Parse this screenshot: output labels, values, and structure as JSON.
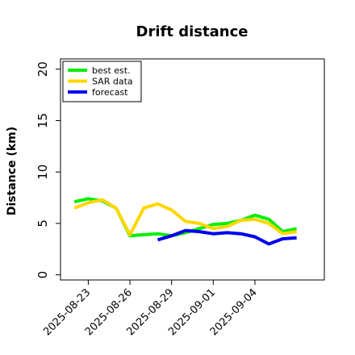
{
  "chart_data": {
    "type": "line",
    "title": "Drift distance",
    "xlabel": "",
    "ylabel": "Distance (km)",
    "ylim": [
      -0.5,
      21
    ],
    "yticks": [
      0,
      5,
      10,
      15,
      20
    ],
    "xticks": [
      "2025-08-23",
      "2025-08-26",
      "2025-08-29",
      "2025-09-01",
      "2025-09-04"
    ],
    "xlim": [
      "2025-08-21",
      "2025-09-09"
    ],
    "grid": false,
    "legend": "top-left",
    "series": [
      {
        "name": "best est.",
        "color": "#00ee00",
        "x": [
          "2025-08-22",
          "2025-08-23",
          "2025-08-24",
          "2025-08-25",
          "2025-08-26",
          "2025-08-27",
          "2025-08-28",
          "2025-08-29",
          "2025-08-30",
          "2025-08-31",
          "2025-09-01",
          "2025-09-02",
          "2025-09-03",
          "2025-09-04",
          "2025-09-05",
          "2025-09-06",
          "2025-09-07"
        ],
        "values": [
          7.1,
          7.4,
          7.2,
          6.5,
          3.8,
          3.9,
          4.0,
          3.8,
          4.1,
          4.5,
          4.9,
          5.0,
          5.3,
          5.8,
          5.4,
          4.2,
          4.5
        ]
      },
      {
        "name": "SAR data",
        "color": "#ffd700",
        "x": [
          "2025-08-22",
          "2025-08-23",
          "2025-08-24",
          "2025-08-25",
          "2025-08-26",
          "2025-08-27",
          "2025-08-28",
          "2025-08-29",
          "2025-08-30",
          "2025-08-31",
          "2025-09-01",
          "2025-09-02",
          "2025-09-03",
          "2025-09-04",
          "2025-09-05",
          "2025-09-06",
          "2025-09-07"
        ],
        "values": [
          6.5,
          7.0,
          7.3,
          6.5,
          3.9,
          6.5,
          6.9,
          6.3,
          5.2,
          5.0,
          4.5,
          4.7,
          5.3,
          5.4,
          5.0,
          4.0,
          4.2
        ]
      },
      {
        "name": "forecast",
        "color": "#0000ee",
        "x": [
          "2025-08-28",
          "2025-08-29",
          "2025-08-30",
          "2025-08-31",
          "2025-09-01",
          "2025-09-02",
          "2025-09-03",
          "2025-09-04",
          "2025-09-05",
          "2025-09-06",
          "2025-09-07"
        ],
        "values": [
          3.4,
          3.8,
          4.3,
          4.2,
          4.0,
          4.1,
          4.0,
          3.7,
          3.0,
          3.5,
          3.6
        ]
      }
    ]
  }
}
